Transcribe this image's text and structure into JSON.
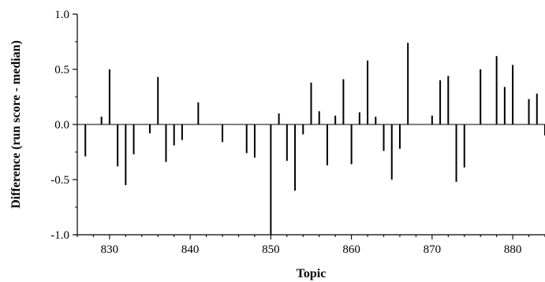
{
  "chart_data": {
    "type": "bar",
    "xlabel": "Topic",
    "ylabel": "Difference (run score - median)",
    "xlim": [
      826,
      884
    ],
    "ylim": [
      -1.0,
      1.0
    ],
    "grid": false,
    "x_ticks": [
      830,
      840,
      850,
      860,
      870,
      880
    ],
    "x_tick_labels": [
      "830",
      "840",
      "850",
      "860",
      "870",
      "880"
    ],
    "y_ticks": [
      -1.0,
      -0.5,
      0.0,
      0.5,
      1.0
    ],
    "y_tick_labels": [
      "-1.0",
      "-0.5",
      "0.0",
      "0.5",
      "1.0"
    ],
    "bar_color": "#000000",
    "x": [
      827,
      829,
      830,
      831,
      832,
      833,
      835,
      836,
      837,
      838,
      839,
      841,
      844,
      847,
      848,
      850,
      851,
      852,
      853,
      854,
      855,
      856,
      857,
      858,
      859,
      860,
      861,
      862,
      863,
      864,
      865,
      866,
      867,
      870,
      871,
      872,
      873,
      874,
      876,
      878,
      879,
      880,
      882,
      883,
      884
    ],
    "values": [
      -0.29,
      0.07,
      0.5,
      -0.38,
      -0.55,
      -0.27,
      -0.08,
      0.43,
      -0.34,
      -0.19,
      -0.14,
      0.2,
      -0.16,
      -0.26,
      -0.3,
      -1.0,
      0.1,
      -0.33,
      -0.6,
      -0.09,
      0.38,
      0.12,
      -0.37,
      0.08,
      0.41,
      -0.36,
      0.11,
      0.58,
      0.07,
      -0.24,
      -0.5,
      -0.22,
      0.74,
      0.08,
      0.4,
      0.44,
      -0.52,
      -0.39,
      0.5,
      0.62,
      0.34,
      0.54,
      0.23,
      0.28,
      -0.1
    ]
  }
}
